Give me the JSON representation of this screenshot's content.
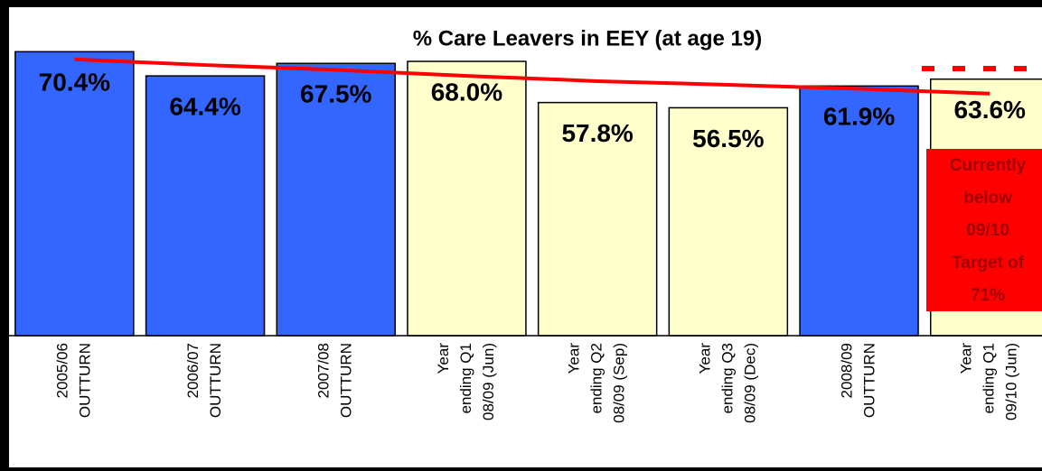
{
  "chart_data": {
    "type": "bar",
    "title": "% Care Leavers in EEY (at age 19)",
    "categories": [
      [
        "2005/06",
        "OUTTURN"
      ],
      [
        "2006/07",
        "OUTTURN"
      ],
      [
        "2007/08",
        "OUTTURN"
      ],
      [
        "Year",
        "ending Q1",
        "08/09 (Jun)"
      ],
      [
        "Year",
        "ending Q2",
        "08/09 (Sep)"
      ],
      [
        "Year",
        "ending Q3",
        "08/09 (Dec)"
      ],
      [
        "2008/09",
        "OUTTURN"
      ],
      [
        "Year",
        "ending Q1",
        "09/10 (Jun)"
      ]
    ],
    "values": [
      70.4,
      64.4,
      67.5,
      68.0,
      57.8,
      56.5,
      61.9,
      63.6
    ],
    "value_labels": [
      "70.4%",
      "64.4%",
      "67.5%",
      "68.0%",
      "57.8%",
      "56.5%",
      "61.9%",
      "63.6%"
    ],
    "colors": [
      "#3366ff",
      "#3366ff",
      "#3366ff",
      "#ffffcc",
      "#ffffcc",
      "#ffffcc",
      "#3366ff",
      "#ffffcc"
    ],
    "series": [
      {
        "color": "#ff0000",
        "values": [
          68.5,
          67.1,
          65.9,
          64.4,
          63.1,
          62.2,
          61.2,
          60.0
        ]
      }
    ],
    "legend": "top-right",
    "annotation": {
      "lines": [
        "Currently",
        "below",
        "09/10",
        "Target of",
        "71%"
      ],
      "color": "#ff0000"
    }
  }
}
